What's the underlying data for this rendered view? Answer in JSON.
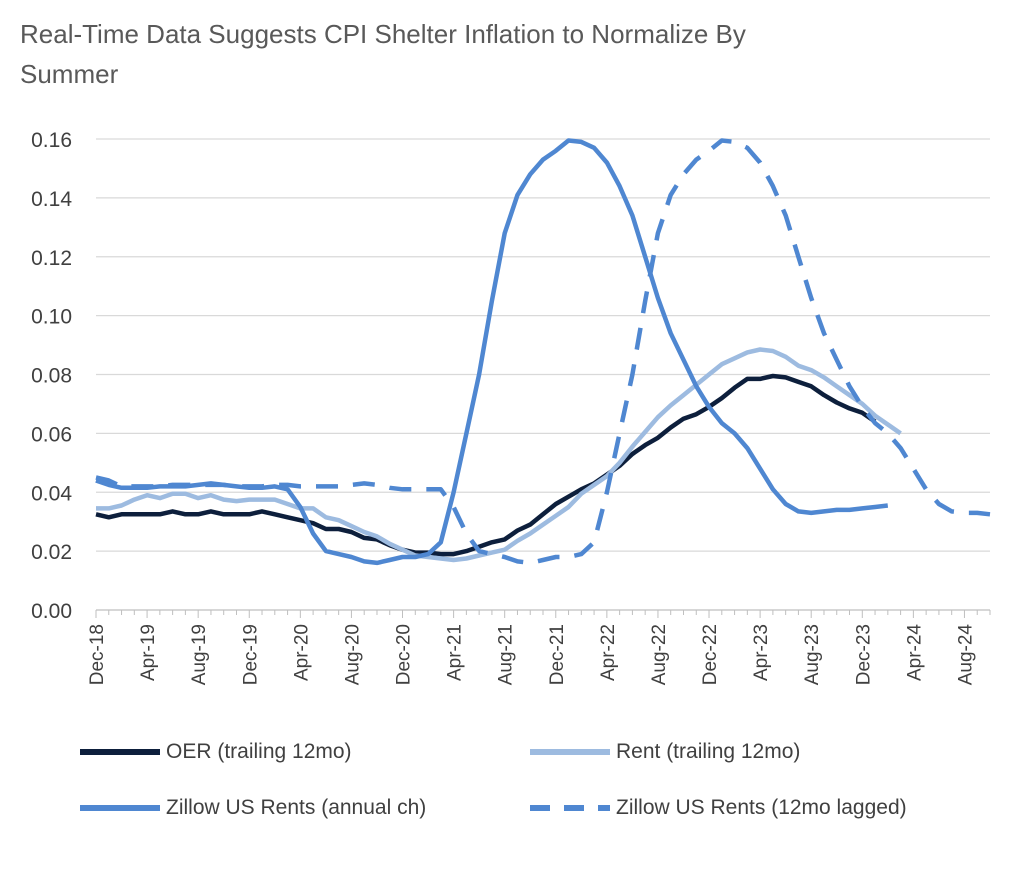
{
  "chart_data": {
    "type": "line",
    "title": "Real-Time Data Suggests CPI Shelter Inflation to Normalize By Summer",
    "xlabel": "",
    "ylabel": "",
    "ylim": [
      0,
      0.16
    ],
    "yticks": [
      "0.00",
      "0.02",
      "0.04",
      "0.06",
      "0.08",
      "0.10",
      "0.12",
      "0.14",
      "0.16"
    ],
    "x_range": [
      "Dec-18",
      "Oct-24"
    ],
    "xticks": [
      "Dec-18",
      "Apr-19",
      "Aug-19",
      "Dec-19",
      "Apr-20",
      "Aug-20",
      "Dec-20",
      "Apr-21",
      "Aug-21",
      "Dec-21",
      "Apr-22",
      "Aug-22",
      "Dec-22",
      "Apr-23",
      "Aug-23",
      "Dec-23",
      "Apr-24",
      "Aug-24"
    ],
    "grid": "horizontal",
    "legend_position": "bottom",
    "series": [
      {
        "name": "OER (trailing 12mo)",
        "color": "#0d1f3c",
        "dash": "solid",
        "x": [
          "Dec-18",
          "Jan-19",
          "Feb-19",
          "Mar-19",
          "Apr-19",
          "May-19",
          "Jun-19",
          "Jul-19",
          "Aug-19",
          "Sep-19",
          "Oct-19",
          "Nov-19",
          "Dec-19",
          "Jan-20",
          "Feb-20",
          "Mar-20",
          "Apr-20",
          "May-20",
          "Jun-20",
          "Jul-20",
          "Aug-20",
          "Sep-20",
          "Oct-20",
          "Nov-20",
          "Dec-20",
          "Jan-21",
          "Feb-21",
          "Mar-21",
          "Apr-21",
          "May-21",
          "Jun-21",
          "Jul-21",
          "Aug-21",
          "Sep-21",
          "Oct-21",
          "Nov-21",
          "Dec-21",
          "Jan-22",
          "Feb-22",
          "Mar-22",
          "Apr-22",
          "May-22",
          "Jun-22",
          "Jul-22",
          "Aug-22",
          "Sep-22",
          "Oct-22",
          "Nov-22",
          "Dec-22",
          "Jan-23",
          "Feb-23",
          "Mar-23",
          "Apr-23",
          "May-23",
          "Jun-23",
          "Jul-23",
          "Aug-23",
          "Sep-23",
          "Oct-23",
          "Nov-23",
          "Dec-23",
          "Jan-24"
        ],
        "values": [
          0.0325,
          0.0315,
          0.0325,
          0.0325,
          0.0325,
          0.0325,
          0.0335,
          0.0325,
          0.0325,
          0.0335,
          0.0325,
          0.0325,
          0.0325,
          0.0335,
          0.0325,
          0.0315,
          0.0305,
          0.0295,
          0.0275,
          0.0275,
          0.0265,
          0.0245,
          0.024,
          0.022,
          0.0205,
          0.0195,
          0.0195,
          0.019,
          0.019,
          0.02,
          0.0215,
          0.023,
          0.024,
          0.027,
          0.029,
          0.0325,
          0.036,
          0.0385,
          0.041,
          0.043,
          0.046,
          0.049,
          0.053,
          0.056,
          0.0585,
          0.062,
          0.065,
          0.0665,
          0.069,
          0.072,
          0.0755,
          0.0785,
          0.0785,
          0.0795,
          0.079,
          0.0775,
          0.076,
          0.073,
          0.0705,
          0.0685,
          0.067,
          0.064
        ]
      },
      {
        "name": "Rent (trailing 12mo)",
        "color": "#9dbbe0",
        "dash": "solid",
        "x": [
          "Dec-18",
          "Jan-19",
          "Feb-19",
          "Mar-19",
          "Apr-19",
          "May-19",
          "Jun-19",
          "Jul-19",
          "Aug-19",
          "Sep-19",
          "Oct-19",
          "Nov-19",
          "Dec-19",
          "Jan-20",
          "Feb-20",
          "Mar-20",
          "Apr-20",
          "May-20",
          "Jun-20",
          "Jul-20",
          "Aug-20",
          "Sep-20",
          "Oct-20",
          "Nov-20",
          "Dec-20",
          "Jan-21",
          "Feb-21",
          "Mar-21",
          "Apr-21",
          "May-21",
          "Jun-21",
          "Jul-21",
          "Aug-21",
          "Sep-21",
          "Oct-21",
          "Nov-21",
          "Dec-21",
          "Jan-22",
          "Feb-22",
          "Mar-22",
          "Apr-22",
          "May-22",
          "Jun-22",
          "Jul-22",
          "Aug-22",
          "Sep-22",
          "Oct-22",
          "Nov-22",
          "Dec-22",
          "Jan-23",
          "Feb-23",
          "Mar-23",
          "Apr-23",
          "May-23",
          "Jun-23",
          "Jul-23",
          "Aug-23",
          "Sep-23",
          "Oct-23",
          "Nov-23",
          "Dec-23",
          "Jan-24",
          "Feb-24",
          "Mar-24"
        ],
        "values": [
          0.0345,
          0.0345,
          0.0355,
          0.0375,
          0.039,
          0.038,
          0.0395,
          0.0395,
          0.038,
          0.039,
          0.0375,
          0.037,
          0.0375,
          0.0375,
          0.0375,
          0.036,
          0.0345,
          0.0345,
          0.0315,
          0.0305,
          0.0285,
          0.0265,
          0.025,
          0.0225,
          0.0205,
          0.0185,
          0.018,
          0.0175,
          0.017,
          0.0175,
          0.0185,
          0.0195,
          0.0205,
          0.0235,
          0.026,
          0.029,
          0.032,
          0.035,
          0.0395,
          0.0425,
          0.0455,
          0.05,
          0.0555,
          0.0605,
          0.0655,
          0.0695,
          0.073,
          0.0765,
          0.08,
          0.0835,
          0.0855,
          0.0875,
          0.0885,
          0.088,
          0.086,
          0.083,
          0.0815,
          0.079,
          0.076,
          0.073,
          0.07,
          0.066,
          0.063,
          0.06
        ]
      },
      {
        "name": "Zillow US Rents (annual ch)",
        "color": "#4f87d1",
        "dash": "solid",
        "x": [
          "Dec-18",
          "Jan-19",
          "Feb-19",
          "Mar-19",
          "Apr-19",
          "May-19",
          "Jun-19",
          "Jul-19",
          "Aug-19",
          "Sep-19",
          "Oct-19",
          "Nov-19",
          "Dec-19",
          "Jan-20",
          "Feb-20",
          "Mar-20",
          "Apr-20",
          "May-20",
          "Jun-20",
          "Jul-20",
          "Aug-20",
          "Sep-20",
          "Oct-20",
          "Nov-20",
          "Dec-20",
          "Jan-21",
          "Feb-21",
          "Mar-21",
          "Apr-21",
          "May-21",
          "Jun-21",
          "Jul-21",
          "Aug-21",
          "Sep-21",
          "Oct-21",
          "Nov-21",
          "Dec-21",
          "Jan-22",
          "Feb-22",
          "Mar-22",
          "Apr-22",
          "May-22",
          "Jun-22",
          "Jul-22",
          "Aug-22",
          "Sep-22",
          "Oct-22",
          "Nov-22",
          "Dec-22",
          "Jan-23",
          "Feb-23",
          "Mar-23",
          "Apr-23",
          "May-23",
          "Jun-23",
          "Jul-23",
          "Aug-23",
          "Sep-23",
          "Oct-23",
          "Nov-23",
          "Dec-23",
          "Jan-24",
          "Feb-24"
        ],
        "values": [
          0.044,
          0.0425,
          0.0415,
          0.0415,
          0.0415,
          0.042,
          0.042,
          0.042,
          0.0425,
          0.043,
          0.0425,
          0.042,
          0.0415,
          0.0415,
          0.042,
          0.041,
          0.035,
          0.026,
          0.02,
          0.019,
          0.018,
          0.0165,
          0.016,
          0.017,
          0.018,
          0.018,
          0.019,
          0.023,
          0.04,
          0.06,
          0.08,
          0.105,
          0.128,
          0.141,
          0.148,
          0.153,
          0.156,
          0.1595,
          0.159,
          0.157,
          0.152,
          0.144,
          0.134,
          0.12,
          0.106,
          0.094,
          0.085,
          0.076,
          0.069,
          0.0635,
          0.06,
          0.055,
          0.048,
          0.041,
          0.036,
          0.0335,
          0.033,
          0.0335,
          0.034,
          0.034,
          0.0345,
          0.035,
          0.0355
        ]
      },
      {
        "name": "Zillow US Rents (12mo lagged)",
        "color": "#4f87d1",
        "dash": "dashed",
        "x": [
          "Dec-18",
          "Jan-19",
          "Feb-19",
          "Mar-19",
          "Apr-19",
          "May-19",
          "Jun-19",
          "Jul-19",
          "Aug-19",
          "Sep-19",
          "Oct-19",
          "Nov-19",
          "Dec-19",
          "Jan-20",
          "Feb-20",
          "Mar-20",
          "Apr-20",
          "May-20",
          "Jun-20",
          "Jul-20",
          "Aug-20",
          "Sep-20",
          "Oct-20",
          "Nov-20",
          "Dec-20",
          "Jan-21",
          "Feb-21",
          "Mar-21",
          "Apr-21",
          "May-21",
          "Jun-21",
          "Jul-21",
          "Aug-21",
          "Sep-21",
          "Oct-21",
          "Nov-21",
          "Dec-21",
          "Jan-22",
          "Feb-22",
          "Mar-22",
          "Apr-22",
          "May-22",
          "Jun-22",
          "Jul-22",
          "Aug-22",
          "Sep-22",
          "Oct-22",
          "Nov-22",
          "Dec-22",
          "Jan-23",
          "Feb-23",
          "Mar-23",
          "Apr-23",
          "May-23",
          "Jun-23",
          "Jul-23",
          "Aug-23",
          "Sep-23",
          "Oct-23",
          "Nov-23",
          "Dec-23",
          "Jan-24",
          "Feb-24",
          "Mar-24",
          "Apr-24",
          "May-24",
          "Jun-24",
          "Jul-24",
          "Aug-24",
          "Sep-24",
          "Oct-24"
        ],
        "values": [
          0.045,
          0.044,
          0.042,
          0.042,
          0.042,
          0.042,
          0.0425,
          0.0425,
          0.0425,
          0.0425,
          0.0425,
          0.042,
          0.042,
          0.042,
          0.0425,
          0.0425,
          0.042,
          0.042,
          0.042,
          0.042,
          0.0425,
          0.043,
          0.0425,
          0.0415,
          0.041,
          0.041,
          0.041,
          0.041,
          0.035,
          0.026,
          0.02,
          0.019,
          0.018,
          0.0165,
          0.016,
          0.017,
          0.018,
          0.018,
          0.019,
          0.023,
          0.04,
          0.06,
          0.08,
          0.105,
          0.128,
          0.141,
          0.148,
          0.153,
          0.156,
          0.1595,
          0.159,
          0.157,
          0.152,
          0.144,
          0.134,
          0.12,
          0.106,
          0.094,
          0.085,
          0.076,
          0.069,
          0.0635,
          0.06,
          0.055,
          0.048,
          0.041,
          0.036,
          0.0335,
          0.033,
          0.033,
          0.0325
        ]
      }
    ]
  }
}
